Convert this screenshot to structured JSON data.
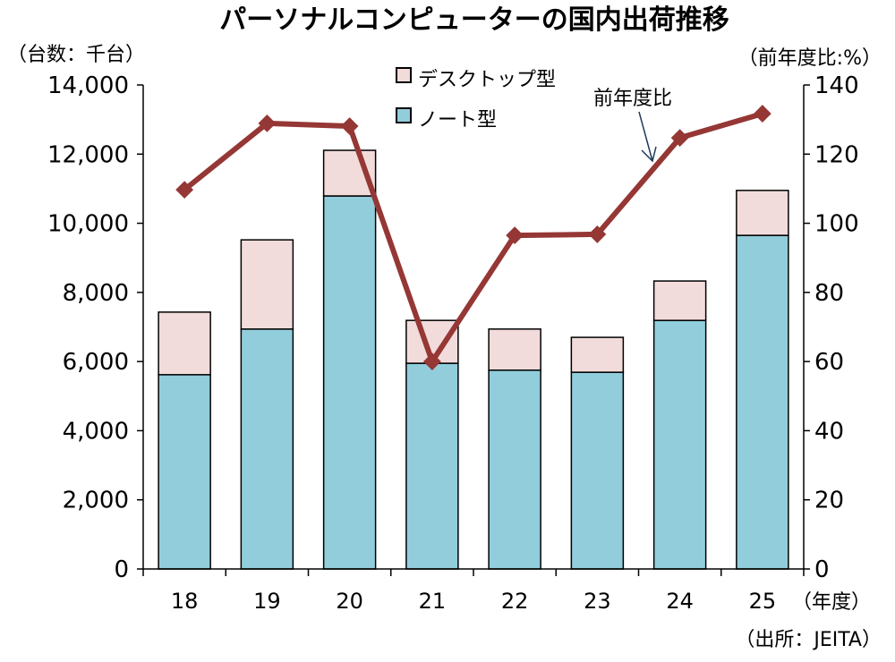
{
  "chart_data": {
    "type": "bar",
    "stacked": true,
    "title": "パーソナルコンピューターの国内出荷推移",
    "ylabel": "（台数：千台）",
    "y2label": "（前年度比:%）",
    "xlabel": "（年度）",
    "source": "（出所：JEITA）",
    "categories": [
      "18",
      "19",
      "20",
      "21",
      "22",
      "23",
      "24",
      "25"
    ],
    "ylim": [
      0,
      14000
    ],
    "yticks": [
      "0",
      "2,000",
      "4,000",
      "6,000",
      "8,000",
      "10,000",
      "12,000",
      "14,000"
    ],
    "y2lim": [
      0,
      140
    ],
    "y2ticks": [
      "0",
      "20",
      "40",
      "60",
      "80",
      "100",
      "120",
      "140"
    ],
    "series": [
      {
        "name": "ノート型",
        "type": "bar",
        "color": "#92CDDC",
        "values": [
          5620,
          6940,
          10790,
          5950,
          5750,
          5690,
          7190,
          9650
        ]
      },
      {
        "name": "デスクトップ型",
        "type": "bar",
        "color": "#F2DCDB",
        "values": [
          1810,
          2580,
          1320,
          1240,
          1190,
          1010,
          1140,
          1300
        ]
      },
      {
        "name": "前年度比",
        "type": "line",
        "axis": "right",
        "color": "#953735",
        "values": [
          109.7,
          128.9,
          128.1,
          60.0,
          96.5,
          96.8,
          124.7,
          131.7
        ]
      }
    ],
    "legend": {
      "position": "top-center",
      "items": [
        "デスクトップ型",
        "ノート型"
      ]
    },
    "annotation": "前年度比",
    "grid": false
  }
}
